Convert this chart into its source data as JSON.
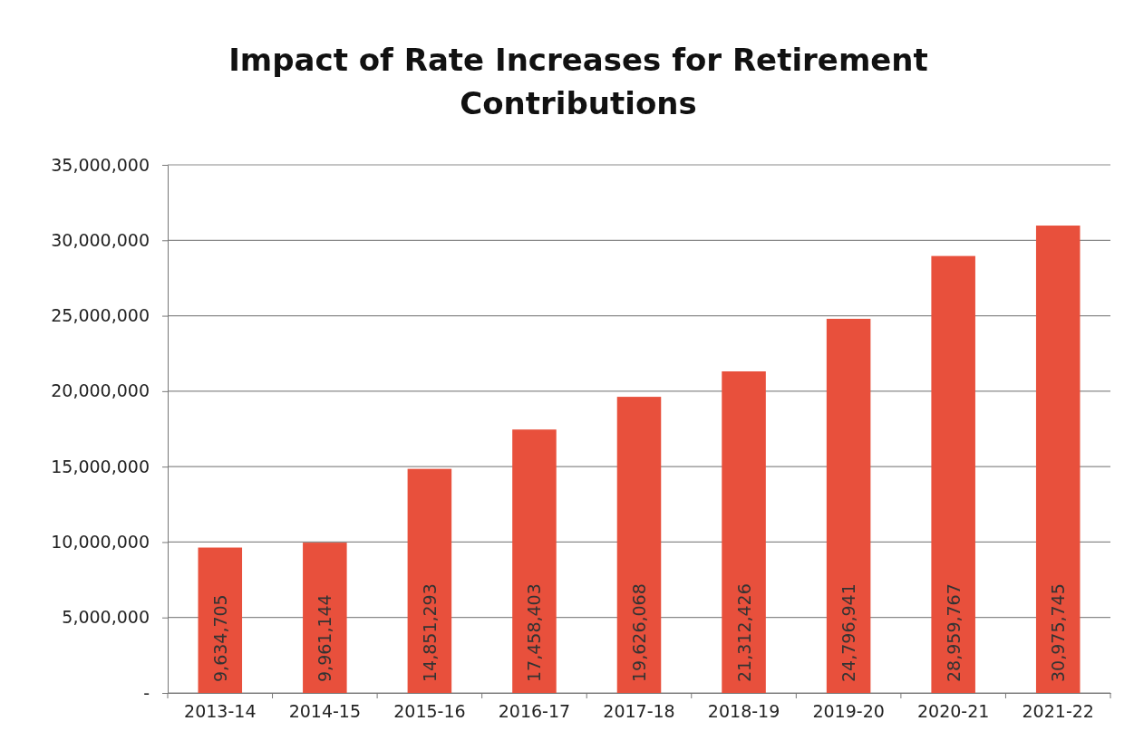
{
  "chart_data": {
    "type": "bar",
    "title": "Impact of Rate Increases for Retirement Contributions",
    "categories": [
      "2013-14",
      "2014-15",
      "2015-16",
      "2016-17",
      "2017-18",
      "2018-19",
      "2019-20",
      "2020-21",
      "2021-22"
    ],
    "values": [
      9634705,
      9961144,
      14851293,
      17458403,
      19626068,
      21312426,
      24796941,
      28959767,
      30975745
    ],
    "color": "#e8503c",
    "ylim": [
      0,
      35000000
    ],
    "yticks": [
      {
        "value": 0,
        "label": "-"
      },
      {
        "value": 5000000,
        "label": "5,000,000"
      },
      {
        "value": 10000000,
        "label": "10,000,000"
      },
      {
        "value": 15000000,
        "label": "15,000,000"
      },
      {
        "value": 20000000,
        "label": "20,000,000"
      },
      {
        "value": 25000000,
        "label": "25,000,000"
      },
      {
        "value": 30000000,
        "label": "30,000,000"
      },
      {
        "value": 35000000,
        "label": "35,000,000"
      }
    ],
    "value_labels": [
      "9,634,705",
      "9,961,144",
      "14,851,293",
      "17,458,403",
      "19,626,068",
      "21,312,426",
      "24,796,941",
      "28,959,767",
      "30,975,745"
    ],
    "grid": "y"
  }
}
